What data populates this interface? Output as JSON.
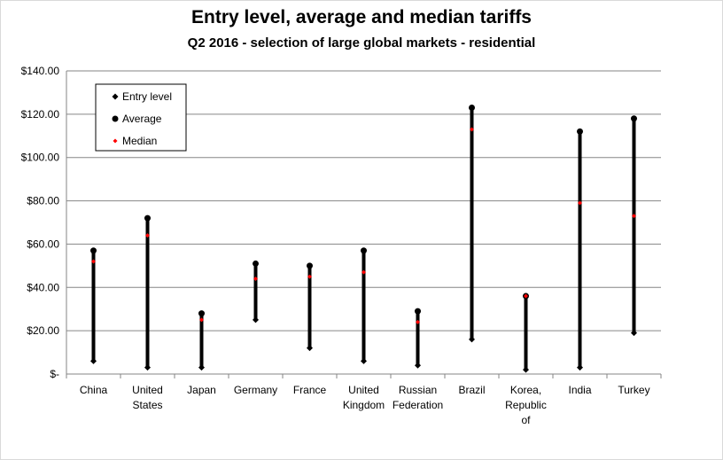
{
  "chart_data": {
    "type": "range-dot",
    "title": "Entry level, average and median tariffs",
    "subtitle": "Q2 2016 - selection of large global markets - residential",
    "categories": [
      [
        "China"
      ],
      [
        "United",
        "States"
      ],
      [
        "Japan"
      ],
      [
        "Germany"
      ],
      [
        "France"
      ],
      [
        "United",
        "Kingdom"
      ],
      [
        "Russian",
        "Federation"
      ],
      [
        "Brazil"
      ],
      [
        "Korea,",
        "Republic",
        "of"
      ],
      [
        "India"
      ],
      [
        "Turkey"
      ]
    ],
    "series": [
      {
        "name": "Entry level",
        "values": [
          6,
          3,
          3,
          25,
          12,
          6,
          4,
          16,
          2,
          3,
          19
        ],
        "color": "#000000",
        "marker": "diamond"
      },
      {
        "name": "Average",
        "values": [
          57,
          72,
          28,
          51,
          50,
          57,
          29,
          123,
          36,
          112,
          118
        ],
        "color": "#000000",
        "marker": "circle"
      },
      {
        "name": "Median",
        "values": [
          52,
          64,
          25,
          44,
          45,
          47,
          24,
          113,
          36,
          79,
          73
        ],
        "color": "#ff0000",
        "marker": "diamond"
      }
    ],
    "ylim": [
      0,
      140
    ],
    "yticks": [
      0,
      20,
      40,
      60,
      80,
      100,
      120,
      140
    ],
    "ytick_labels": [
      "$-",
      "$20.00",
      "$40.00",
      "$60.00",
      "$80.00",
      "$100.00",
      "$120.00",
      "$140.00"
    ],
    "grid": true,
    "legend_position": "top-left"
  }
}
